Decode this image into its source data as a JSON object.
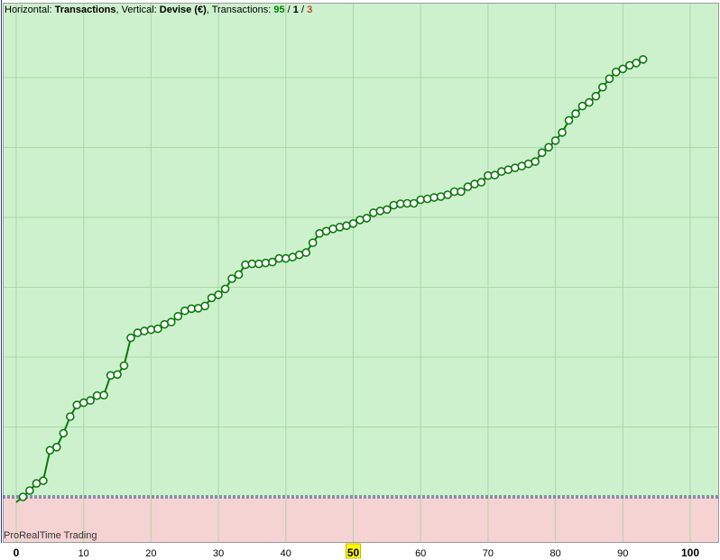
{
  "header": {
    "h_label": "Horizontal: ",
    "h_value": "Transactions",
    "v_label": ", Vertical: ",
    "v_value": "Devise (€)",
    "t_label": ", Transactions: ",
    "wins": "95",
    "sep1": " / ",
    "neutral": "1",
    "sep2": " / ",
    "losses": "3"
  },
  "watermark": "ProRealTime Trading",
  "colors": {
    "positive_zone": "#cdf1cd",
    "negative_zone": "#f5d3d3",
    "grid": "#a9d8a9",
    "line": "#0a7a0a",
    "marker_fill": "#ffffff",
    "zero_line": "#2a3a8a",
    "highlight": "#ffff00",
    "wins": "#008000",
    "losses": "#cc0000"
  },
  "chart_data": {
    "type": "line",
    "x_ticks": [
      "0",
      "10",
      "20",
      "30",
      "40",
      "50",
      "60",
      "70",
      "80",
      "90",
      "100"
    ],
    "highlighted_tick": "50",
    "x_range": [
      0,
      100
    ],
    "grid": true,
    "series": [
      {
        "values": [
          0.0,
          0.014,
          0.03,
          0.036,
          0.104,
          0.111,
          0.142,
          0.179,
          0.205,
          0.21,
          0.215,
          0.226,
          0.227,
          0.271,
          0.273,
          0.293,
          0.355,
          0.366,
          0.37,
          0.373,
          0.375,
          0.385,
          0.39,
          0.403,
          0.415,
          0.42,
          0.421,
          0.426,
          0.444,
          0.451,
          0.464,
          0.487,
          0.496,
          0.518,
          0.52,
          0.52,
          0.522,
          0.524,
          0.532,
          0.532,
          0.535,
          0.54,
          0.545,
          0.567,
          0.588,
          0.593,
          0.598,
          0.602,
          0.605,
          0.61,
          0.618,
          0.622,
          0.634,
          0.638,
          0.641,
          0.651,
          0.654,
          0.655,
          0.655,
          0.663,
          0.665,
          0.668,
          0.67,
          0.674,
          0.681,
          0.681,
          0.692,
          0.698,
          0.702,
          0.717,
          0.718,
          0.726,
          0.73,
          0.734,
          0.738,
          0.743,
          0.748,
          0.768,
          0.78,
          0.795,
          0.813,
          0.84,
          0.855,
          0.872,
          0.88,
          0.894,
          0.914,
          0.933,
          0.948,
          0.955,
          0.963,
          0.968,
          0.976
        ]
      }
    ]
  }
}
